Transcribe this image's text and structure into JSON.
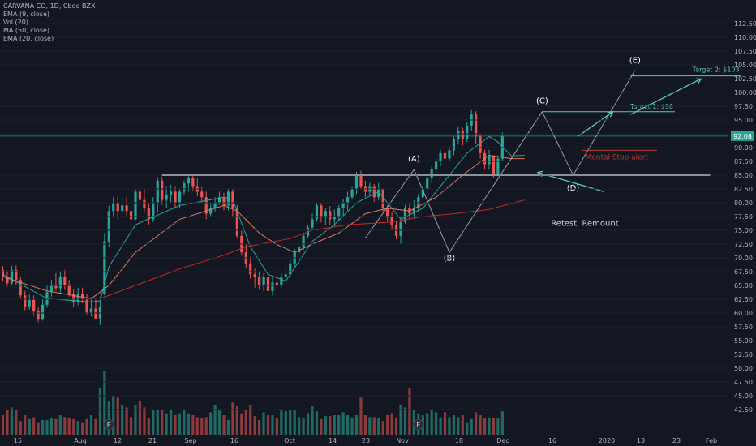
{
  "legend": {
    "title": "CARVANA CO, 1D, Cboe BZX",
    "ema9": "EMA (9, close)",
    "vol": "Vol (20)",
    "ma50": "MA (50, close)",
    "ema20": "EMA (20, close)"
  },
  "colors": {
    "background": "#131722",
    "up": "#26a69a",
    "down": "#ef5350",
    "vol_up": "#1f6b63",
    "vol_down": "#8b3a3e",
    "ema9": "#26a69a",
    "ema20": "#e07a5f",
    "ma50": "#c62828",
    "annotation": "#5ec8c0",
    "white_line": "#ffffff",
    "stop": "#b23a3a",
    "price_line": "#26a69a",
    "axis_text": "#b2b5be"
  },
  "chart_data": {
    "type": "candlestick",
    "ylim": [
      40,
      115
    ],
    "y_ticks": [
      "112.50",
      "110.00",
      "107.50",
      "105.00",
      "102.50",
      "100.00",
      "97.50",
      "95.00",
      "92.50",
      "90.00",
      "87.50",
      "85.00",
      "82.50",
      "80.00",
      "77.50",
      "75.00",
      "72.50",
      "70.00",
      "67.50",
      "65.00",
      "62.50",
      "60.00",
      "57.50",
      "55.00",
      "52.50",
      "50.00",
      "47.50",
      "45.00",
      "42.50"
    ],
    "x_ticks": [
      "15",
      "Aug",
      "12",
      "21",
      "Sep",
      "16",
      "Oct",
      "14",
      "23",
      "Nov",
      "18",
      "Dec",
      "16",
      "2020",
      "13",
      "23",
      "Feb"
    ],
    "last_price": "92.08",
    "last_price_value": 92.08,
    "candles": [
      [
        67.8,
        66.5,
        68.5,
        65.8
      ],
      [
        66.5,
        65.4,
        67.6,
        64.8
      ],
      [
        65.4,
        67.8,
        68.6,
        65.0
      ],
      [
        67.8,
        66.0,
        68.6,
        65.0
      ],
      [
        66.0,
        63.2,
        66.6,
        62.6
      ],
      [
        63.2,
        61.2,
        64.0,
        60.5
      ],
      [
        61.2,
        62.4,
        63.4,
        60.6
      ],
      [
        62.4,
        60.3,
        63.2,
        59.5
      ],
      [
        60.3,
        58.8,
        61.0,
        58.3
      ],
      [
        58.8,
        61.5,
        62.6,
        58.6
      ],
      [
        61.5,
        63.8,
        65.0,
        61.0
      ],
      [
        63.8,
        65.0,
        66.0,
        63.0
      ],
      [
        65.0,
        64.5,
        67.2,
        64.0
      ],
      [
        64.5,
        66.6,
        67.6,
        63.6
      ],
      [
        66.6,
        65.0,
        67.8,
        64.2
      ],
      [
        65.0,
        63.5,
        66.0,
        63.0
      ],
      [
        63.5,
        62.0,
        64.4,
        61.0
      ],
      [
        62.0,
        63.5,
        64.6,
        61.4
      ],
      [
        63.5,
        62.6,
        64.6,
        61.8
      ],
      [
        62.6,
        60.0,
        63.4,
        59.6
      ],
      [
        60.0,
        60.8,
        62.6,
        59.4
      ],
      [
        60.8,
        59.0,
        62.6,
        58.8
      ],
      [
        59.0,
        61.2,
        63.0,
        57.8
      ],
      [
        63.5,
        73.0,
        74.5,
        63.2
      ],
      [
        73.0,
        78.5,
        79.5,
        72.0
      ],
      [
        78.5,
        80.0,
        81.0,
        77.5
      ],
      [
        80.0,
        78.5,
        81.2,
        77.0
      ],
      [
        78.5,
        79.5,
        81.0,
        77.8
      ],
      [
        79.5,
        78.5,
        81.0,
        77.4
      ],
      [
        78.5,
        77.0,
        79.5,
        76.0
      ],
      [
        77.0,
        82.0,
        82.6,
        76.6
      ],
      [
        82.0,
        80.5,
        83.0,
        78.6
      ],
      [
        80.5,
        79.0,
        82.6,
        78.2
      ],
      [
        79.0,
        77.0,
        80.0,
        76.0
      ],
      [
        77.0,
        80.0,
        81.0,
        76.5
      ],
      [
        80.0,
        84.0,
        84.6,
        78.2
      ],
      [
        84.0,
        80.5,
        84.7,
        79.6
      ],
      [
        80.5,
        81.5,
        83.0,
        79.0
      ],
      [
        81.5,
        82.0,
        83.2,
        80.0
      ],
      [
        82.0,
        80.0,
        83.0,
        79.0
      ],
      [
        80.0,
        82.0,
        82.6,
        79.0
      ],
      [
        82.0,
        83.5,
        84.0,
        81.5
      ],
      [
        83.5,
        84.5,
        84.8,
        82.0
      ],
      [
        84.5,
        83.0,
        85.2,
        82.2
      ],
      [
        83.0,
        82.0,
        84.6,
        81.2
      ],
      [
        82.0,
        81.0,
        83.0,
        80.0
      ],
      [
        81.0,
        78.0,
        82.0,
        77.0
      ],
      [
        78.0,
        79.0,
        80.0,
        77.4
      ],
      [
        79.0,
        80.0,
        81.0,
        78.4
      ],
      [
        80.0,
        81.0,
        82.0,
        79.6
      ],
      [
        81.0,
        79.5,
        81.8,
        78.6
      ],
      [
        79.5,
        82.0,
        82.6,
        78.6
      ],
      [
        82.0,
        79.0,
        82.6,
        77.6
      ],
      [
        79.0,
        74.0,
        79.6,
        73.6
      ],
      [
        74.0,
        71.0,
        75.0,
        70.4
      ],
      [
        71.0,
        69.0,
        72.6,
        68.2
      ],
      [
        69.0,
        67.0,
        70.2,
        66.2
      ],
      [
        67.0,
        66.5,
        68.0,
        64.6
      ],
      [
        66.5,
        65.0,
        67.6,
        64.2
      ],
      [
        65.0,
        66.5,
        67.2,
        64.0
      ],
      [
        66.5,
        64.0,
        67.0,
        63.4
      ],
      [
        64.0,
        65.5,
        66.6,
        63.2
      ],
      [
        65.5,
        65.0,
        66.8,
        64.0
      ],
      [
        65.0,
        66.5,
        67.2,
        64.6
      ],
      [
        66.5,
        67.0,
        68.0,
        65.4
      ],
      [
        67.0,
        69.0,
        69.8,
        66.4
      ],
      [
        69.0,
        71.0,
        71.6,
        68.4
      ],
      [
        71.0,
        72.0,
        72.6,
        70.0
      ],
      [
        72.0,
        74.0,
        74.6,
        71.4
      ],
      [
        74.0,
        75.5,
        76.0,
        73.6
      ],
      [
        75.5,
        77.0,
        78.0,
        75.0
      ],
      [
        77.0,
        79.5,
        80.0,
        76.6
      ],
      [
        79.5,
        77.5,
        80.0,
        76.4
      ],
      [
        77.5,
        78.5,
        79.0,
        76.0
      ],
      [
        78.5,
        77.0,
        79.4,
        76.0
      ],
      [
        77.0,
        77.5,
        78.8,
        75.6
      ],
      [
        77.5,
        79.0,
        79.6,
        76.6
      ],
      [
        79.0,
        80.0,
        80.6,
        77.6
      ],
      [
        80.0,
        81.0,
        82.0,
        78.6
      ],
      [
        81.0,
        82.5,
        83.0,
        80.6
      ],
      [
        82.5,
        85.0,
        85.6,
        81.6
      ],
      [
        85.0,
        83.0,
        85.8,
        82.4
      ],
      [
        83.0,
        82.0,
        84.0,
        81.0
      ],
      [
        82.0,
        83.0,
        83.6,
        81.4
      ],
      [
        83.0,
        81.0,
        83.4,
        80.2
      ],
      [
        81.0,
        82.5,
        83.6,
        80.4
      ],
      [
        82.5,
        79.0,
        82.6,
        78.4
      ],
      [
        79.0,
        77.5,
        79.6,
        76.6
      ],
      [
        77.5,
        76.0,
        78.4,
        75.0
      ],
      [
        76.0,
        74.0,
        76.8,
        73.4
      ],
      [
        74.0,
        76.5,
        77.6,
        72.4
      ],
      [
        76.5,
        79.0,
        79.6,
        76.2
      ],
      [
        79.0,
        78.0,
        80.0,
        77.0
      ],
      [
        78.0,
        79.0,
        80.4,
        77.2
      ],
      [
        79.0,
        81.0,
        81.6,
        78.4
      ],
      [
        81.0,
        82.5,
        82.8,
        80.6
      ],
      [
        82.5,
        84.5,
        85.0,
        81.8
      ],
      [
        84.5,
        86.0,
        86.6,
        83.6
      ],
      [
        86.0,
        87.5,
        88.0,
        85.6
      ],
      [
        87.5,
        89.0,
        89.6,
        86.6
      ],
      [
        89.0,
        88.0,
        90.0,
        87.2
      ],
      [
        88.0,
        89.5,
        90.2,
        87.6
      ],
      [
        89.5,
        91.5,
        92.0,
        88.6
      ],
      [
        91.5,
        93.0,
        93.8,
        90.6
      ],
      [
        93.0,
        91.5,
        93.6,
        90.4
      ],
      [
        91.5,
        94.0,
        94.6,
        91.0
      ],
      [
        94.0,
        96.0,
        96.8,
        93.0
      ],
      [
        96.0,
        92.0,
        96.6,
        90.6
      ],
      [
        92.0,
        89.0,
        92.6,
        88.0
      ],
      [
        89.0,
        87.0,
        89.6,
        86.0
      ],
      [
        87.0,
        88.5,
        89.6,
        86.0
      ],
      [
        88.5,
        85.0,
        88.6,
        84.6
      ],
      [
        85.0,
        88.0,
        88.6,
        84.8
      ],
      [
        88.0,
        92.08,
        92.8,
        87.6
      ]
    ],
    "volumes": [
      20,
      25,
      28,
      25,
      14,
      20,
      16,
      18,
      12,
      15,
      15,
      17,
      16,
      20,
      18,
      17,
      16,
      14,
      12,
      16,
      20,
      16,
      48,
      65,
      34,
      40,
      38,
      30,
      28,
      18,
      30,
      35,
      28,
      17,
      26,
      25,
      26,
      22,
      26,
      20,
      22,
      25,
      22,
      20,
      18,
      17,
      18,
      23,
      30,
      25,
      20,
      15,
      33,
      29,
      22,
      26,
      30,
      19,
      15,
      23,
      20,
      20,
      17,
      25,
      24,
      26,
      26,
      18,
      17,
      22,
      29,
      24,
      16,
      19,
      19,
      20,
      20,
      23,
      20,
      17,
      20,
      38,
      20,
      18,
      18,
      17,
      14,
      20,
      22,
      17,
      30,
      28,
      48,
      25,
      22,
      20,
      22,
      26,
      23,
      17,
      23,
      18,
      20,
      18,
      20,
      12,
      16,
      23,
      20,
      17,
      17,
      17,
      17,
      24
    ],
    "ema9": [
      [
        0,
        67.0
      ],
      [
        10,
        62.6
      ],
      [
        20,
        62.0
      ],
      [
        22,
        62.2
      ],
      [
        24,
        68.4
      ],
      [
        30,
        76.0
      ],
      [
        40,
        79.5
      ],
      [
        50,
        81.0
      ],
      [
        52,
        80.6
      ],
      [
        56,
        72.0
      ],
      [
        60,
        67.0
      ],
      [
        64,
        65.8
      ],
      [
        70,
        73.0
      ],
      [
        75,
        76.0
      ],
      [
        80,
        80.0
      ],
      [
        85,
        82.0
      ],
      [
        90,
        77.0
      ],
      [
        95,
        79.0
      ],
      [
        100,
        84.0
      ],
      [
        105,
        89.0
      ],
      [
        110,
        92.0
      ],
      [
        112,
        91.0
      ],
      [
        115,
        88.5
      ],
      [
        118,
        88.6
      ]
    ],
    "ema20": [
      [
        0,
        66.6
      ],
      [
        10,
        64.0
      ],
      [
        20,
        62.6
      ],
      [
        24,
        65.0
      ],
      [
        30,
        71.0
      ],
      [
        40,
        77.0
      ],
      [
        50,
        79.5
      ],
      [
        53,
        78.5
      ],
      [
        58,
        74.5
      ],
      [
        62,
        72.4
      ],
      [
        66,
        71.0
      ],
      [
        70,
        72.5
      ],
      [
        76,
        74.5
      ],
      [
        82,
        78.0
      ],
      [
        87,
        79.0
      ],
      [
        92,
        78.5
      ],
      [
        98,
        81.0
      ],
      [
        104,
        85.0
      ],
      [
        110,
        88.6
      ],
      [
        115,
        88.0
      ],
      [
        118,
        88.0
      ]
    ],
    "ma50": [
      [
        22,
        62.6
      ],
      [
        30,
        65.0
      ],
      [
        40,
        68.0
      ],
      [
        50,
        70.5
      ],
      [
        55,
        72.0
      ],
      [
        65,
        73.5
      ],
      [
        70,
        75.0
      ],
      [
        78,
        76.0
      ],
      [
        88,
        76.5
      ],
      [
        95,
        77.5
      ],
      [
        102,
        78.0
      ],
      [
        110,
        78.8
      ],
      [
        118,
        80.5
      ]
    ],
    "annotations": {
      "resistance": {
        "price": 85,
        "x_start": 36,
        "x_end": 160
      },
      "labels": [
        {
          "text": "(A)",
          "idx": 93,
          "price": 87.5
        },
        {
          "text": "(B)",
          "idx": 101,
          "price": 69.5
        },
        {
          "text": "(C)",
          "idx": 122,
          "price": 98.0
        },
        {
          "text": "(D)",
          "idx": 129,
          "price": 82.2
        },
        {
          "text": "(E)",
          "idx": 143,
          "price": 105.4
        }
      ],
      "abcd_path": [
        [
          82,
          73.6
        ],
        [
          93,
          86.0
        ],
        [
          101,
          71.0
        ],
        [
          122,
          96.5
        ],
        [
          129,
          85.0
        ],
        [
          143,
          104.0
        ]
      ],
      "target1": {
        "text": "Target 1: $96",
        "price": 96.5,
        "x_start": 122,
        "x_end": 152
      },
      "target2": {
        "text": "Target 2: $103",
        "price": 103,
        "x_start": 142,
        "x_end": 167
      },
      "stop": {
        "text": "Mental Stop alert",
        "price": 89.5,
        "x_start": 131,
        "x_end": 148
      },
      "retest": {
        "text": "Retest, Remount"
      },
      "earnings_markers": [
        "E",
        "E"
      ]
    }
  }
}
